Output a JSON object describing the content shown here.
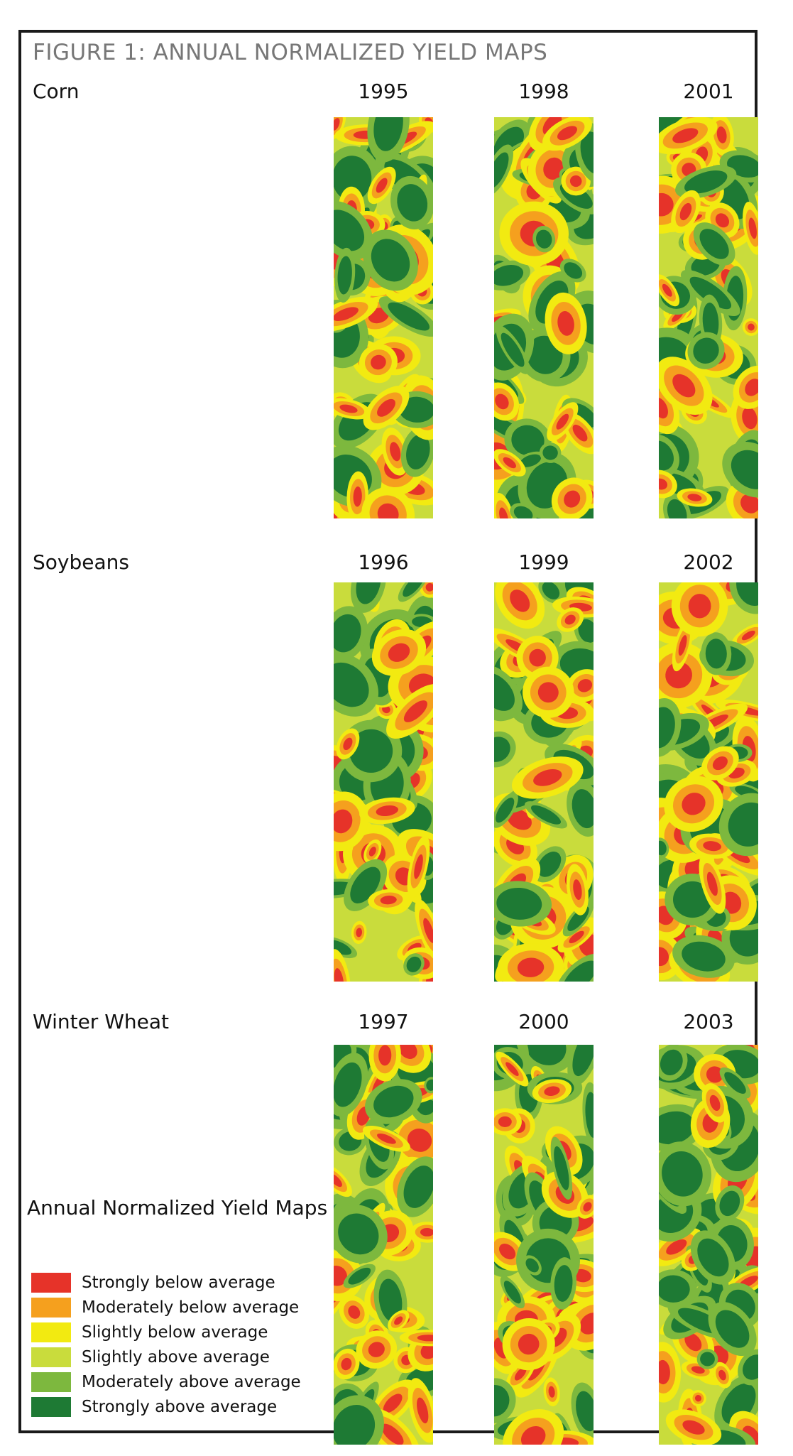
{
  "title": "FIGURE 1: ANNUAL NORMALIZED YIELD MAPS",
  "rows": [
    {
      "crop": "Corn",
      "years": [
        "1995",
        "1998",
        "2001"
      ]
    },
    {
      "crop": "Soybeans",
      "years": [
        "1996",
        "1999",
        "2002"
      ]
    },
    {
      "crop": "Winter Wheat",
      "years": [
        "1997",
        "2000",
        "2003"
      ]
    }
  ],
  "legend": {
    "title": "Annual Normalized Yield Maps",
    "items": [
      {
        "label": "Strongly below average",
        "color": "#e63329"
      },
      {
        "label": "Moderately below average",
        "color": "#f5a01e"
      },
      {
        "label": "Slightly below average",
        "color": "#f2ea11"
      },
      {
        "label": "Slightly above average",
        "color": "#c9dc3c"
      },
      {
        "label": "Moderately above average",
        "color": "#7db83e"
      },
      {
        "label": "Strongly above average",
        "color": "#1e7a34"
      }
    ]
  }
}
